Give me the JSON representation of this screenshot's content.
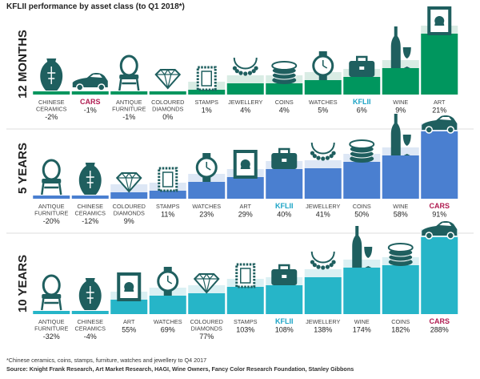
{
  "title": "KFLII performance by asset class (to Q1 2018*)",
  "footnote": "*Chinese ceramics, coins, stamps, furniture, watches and jewellery to Q4 2017",
  "source": "Source: Knight Frank Research, Art Market Research, HAGI, Wine Owners, Fancy Color Research Foundation, Stanley Gibbons",
  "colors": {
    "panel_12m": "#00965e",
    "panel_12m_bg": "#d9ece4",
    "panel_5y": "#4a7fd0",
    "panel_5y_bg": "#dde7f5",
    "panel_10y": "#26b5c8",
    "panel_10y_bg": "#daf0f3",
    "icon_fill": "#1f5f5f",
    "highlight_cars": "#b01b50",
    "highlight_kflii": "#1ba3c6",
    "label_text": "#444444"
  },
  "chart_data": [
    {
      "type": "bar",
      "title": "12 MONTHS",
      "categories": [
        "CHINESE CERAMICS",
        "CARS",
        "ANTIQUE FURNITURE",
        "COLOURED DIAMONDS",
        "STAMPS",
        "JEWELLERY",
        "COINS",
        "WATCHES",
        "KFLII",
        "WINE",
        "ART"
      ],
      "values": [
        -2,
        -1,
        -1,
        0,
        1,
        4,
        4,
        5,
        6,
        9,
        21
      ],
      "value_labels": [
        "-2%",
        "-1%",
        "-1%",
        "0%",
        "1%",
        "4%",
        "4%",
        "5%",
        "6%",
        "9%",
        "21%"
      ],
      "icons": [
        "vase-icon",
        "car-icon",
        "chair-icon",
        "diamond-icon",
        "stamp-icon",
        "necklace-icon",
        "coins-icon",
        "watch-icon",
        "briefcase-icon",
        "wine-icon",
        "art-frame-icon"
      ],
      "highlight": [
        "",
        "cars",
        "",
        "",
        "",
        "",
        "",
        "",
        "kflii",
        "",
        ""
      ]
    },
    {
      "type": "bar",
      "title": "5 YEARS",
      "categories": [
        "ANTIQUE FURNITURE",
        "CHINESE CERAMICS",
        "COLOURED DIAMONDS",
        "STAMPS",
        "WATCHES",
        "ART",
        "KFLII",
        "JEWELLERY",
        "COINS",
        "WINE",
        "CARS"
      ],
      "values": [
        -20,
        -12,
        9,
        11,
        23,
        29,
        40,
        41,
        50,
        58,
        91
      ],
      "value_labels": [
        "-20%",
        "-12%",
        "9%",
        "11%",
        "23%",
        "29%",
        "40%",
        "41%",
        "50%",
        "58%",
        "91%"
      ],
      "icons": [
        "chair-icon",
        "vase-icon",
        "diamond-icon",
        "stamp-icon",
        "watch-icon",
        "art-frame-icon",
        "briefcase-icon",
        "necklace-icon",
        "coins-icon",
        "wine-icon",
        "car-icon"
      ],
      "highlight": [
        "",
        "",
        "",
        "",
        "",
        "",
        "kflii",
        "",
        "",
        "",
        "cars"
      ]
    },
    {
      "type": "bar",
      "title": "10 YEARS",
      "categories": [
        "ANTIQUE FURNITURE",
        "CHINESE CERAMICS",
        "ART",
        "WATCHES",
        "COLOURED DIAMONDS",
        "STAMPS",
        "KFLII",
        "JEWELLERY",
        "WINE",
        "COINS",
        "CARS"
      ],
      "values": [
        -32,
        -4,
        55,
        69,
        77,
        103,
        108,
        138,
        174,
        182,
        288
      ],
      "value_labels": [
        "-32%",
        "-4%",
        "55%",
        "69%",
        "77%",
        "103%",
        "108%",
        "138%",
        "174%",
        "182%",
        "288%"
      ],
      "icons": [
        "chair-icon",
        "vase-icon",
        "art-frame-icon",
        "watch-icon",
        "diamond-icon",
        "stamp-icon",
        "briefcase-icon",
        "necklace-icon",
        "wine-icon",
        "coins-icon",
        "car-icon"
      ],
      "highlight": [
        "",
        "",
        "",
        "",
        "",
        "",
        "kflii",
        "",
        "",
        "",
        "cars"
      ]
    }
  ]
}
